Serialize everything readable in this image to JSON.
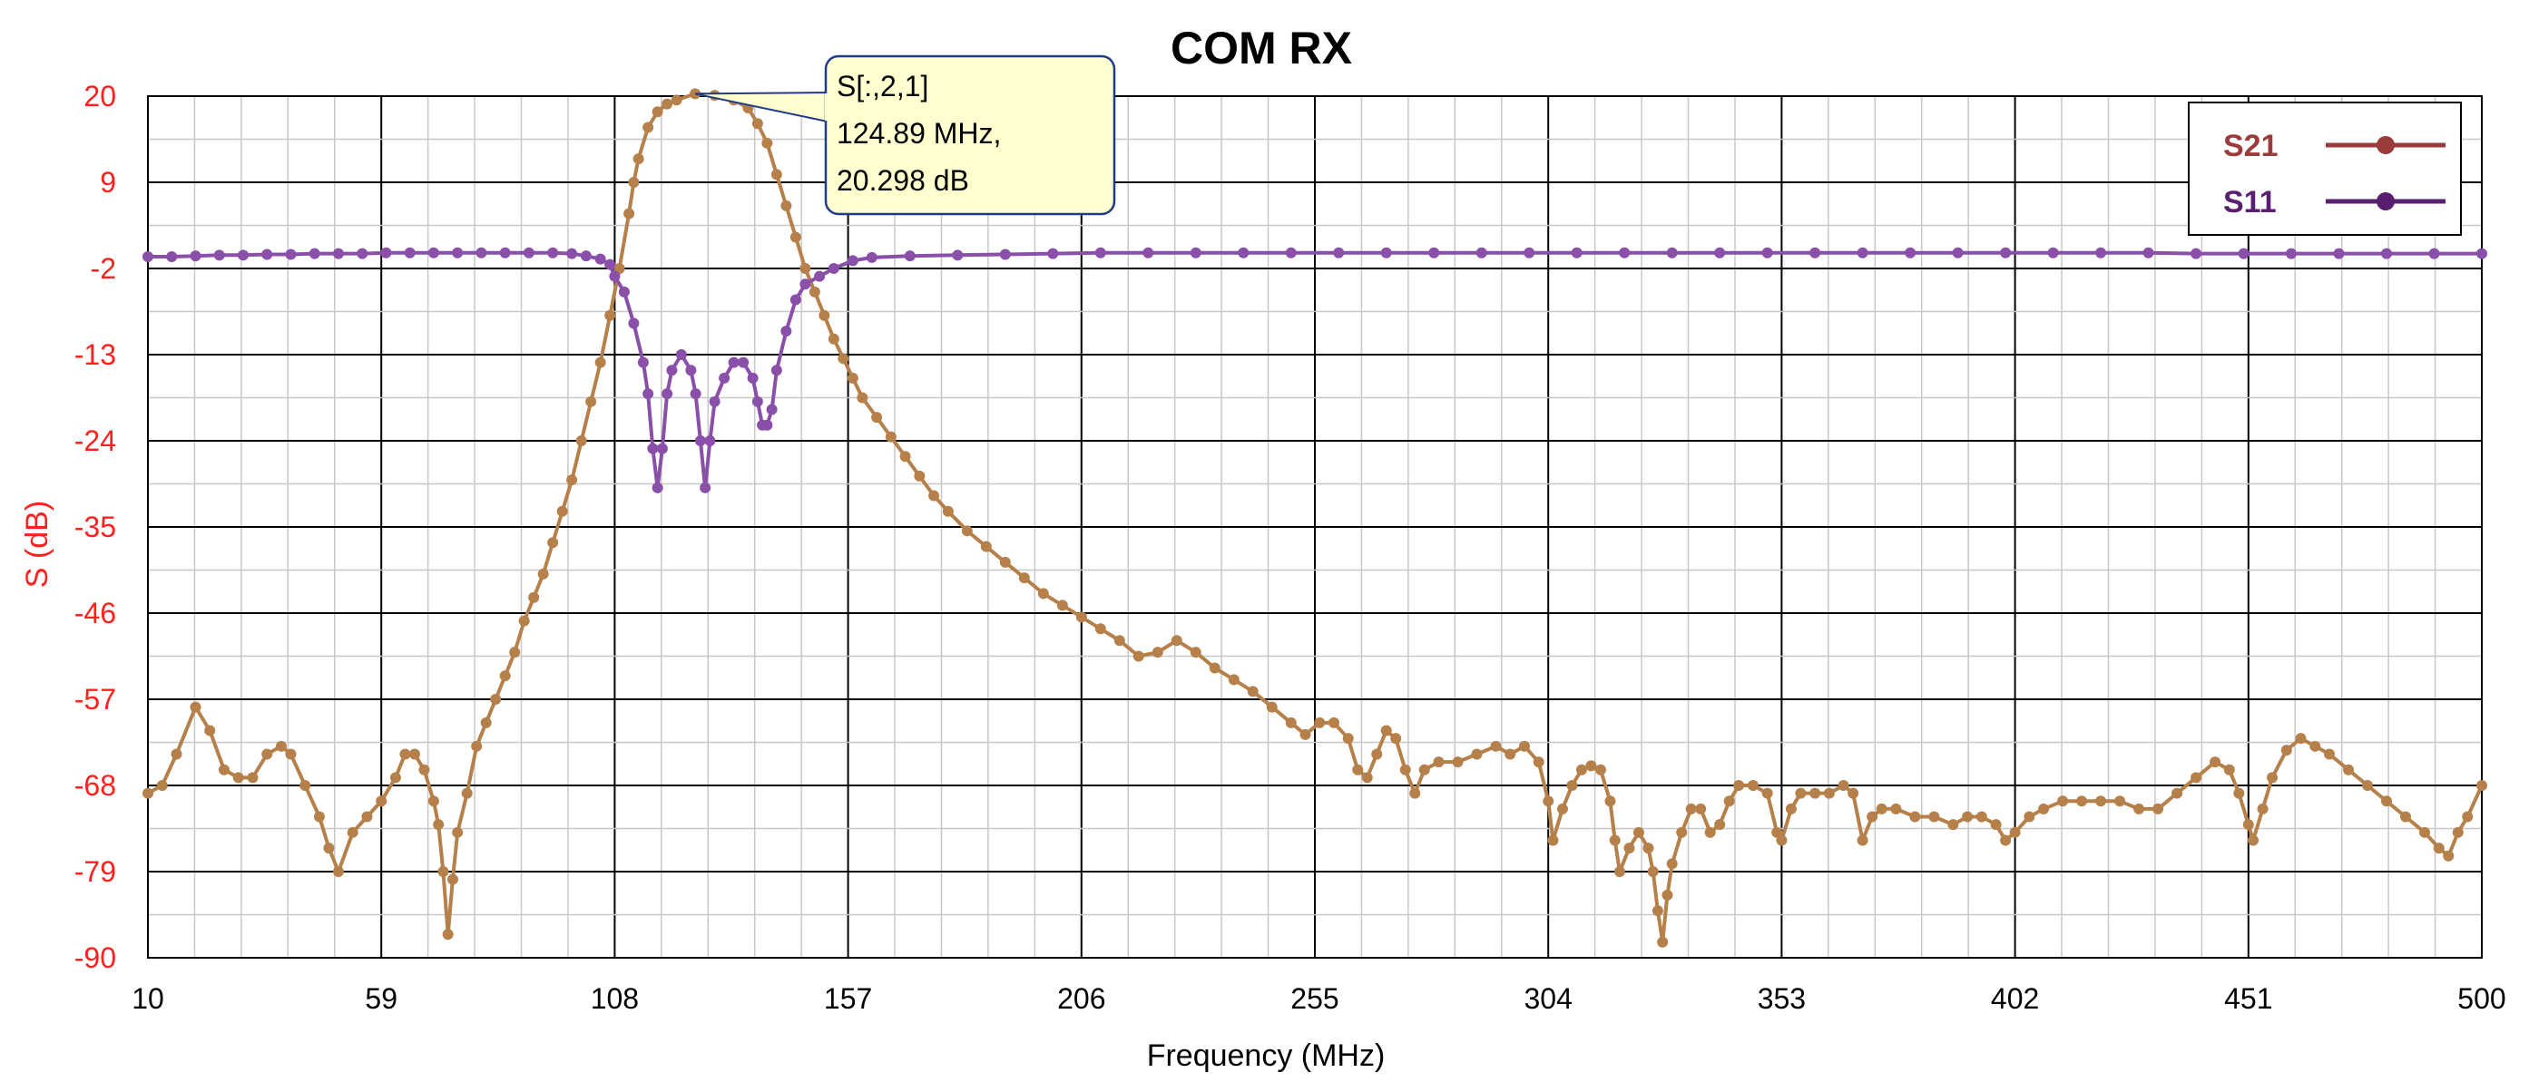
{
  "chart_data": {
    "type": "line",
    "title": "COM RX",
    "xlabel": "Frequency (MHz)",
    "ylabel": "S (dB)",
    "xlim": [
      10,
      500
    ],
    "ylim": [
      -90,
      20
    ],
    "x_ticks": [
      "10",
      "59",
      "108",
      "157",
      "206",
      "255",
      "304",
      "353",
      "402",
      "451",
      "500"
    ],
    "y_ticks": [
      "20",
      "9",
      "-2",
      "-13",
      "-24",
      "-35",
      "-46",
      "-57",
      "-68",
      "-79",
      "-90"
    ],
    "grid": true,
    "legend_position": "top-right",
    "series": [
      {
        "name": "S21",
        "color": "#b5804a",
        "legend_color": "#9b3c3c",
        "points": [
          [
            10,
            -69
          ],
          [
            13,
            -68
          ],
          [
            16,
            -64
          ],
          [
            20,
            -58
          ],
          [
            23,
            -61
          ],
          [
            26,
            -66
          ],
          [
            29,
            -67
          ],
          [
            32,
            -67
          ],
          [
            35,
            -64
          ],
          [
            38,
            -63
          ],
          [
            40,
            -64
          ],
          [
            43,
            -68
          ],
          [
            46,
            -72
          ],
          [
            48,
            -76
          ],
          [
            50,
            -79
          ],
          [
            53,
            -74
          ],
          [
            56,
            -72
          ],
          [
            59,
            -70
          ],
          [
            62,
            -67
          ],
          [
            64,
            -64
          ],
          [
            66,
            -64
          ],
          [
            68,
            -66
          ],
          [
            70,
            -70
          ],
          [
            71,
            -73
          ],
          [
            72,
            -79
          ],
          [
            73,
            -87
          ],
          [
            74,
            -80
          ],
          [
            75,
            -74
          ],
          [
            77,
            -69
          ],
          [
            79,
            -63
          ],
          [
            81,
            -60
          ],
          [
            83,
            -57
          ],
          [
            85,
            -54
          ],
          [
            87,
            -51
          ],
          [
            89,
            -47
          ],
          [
            91,
            -44
          ],
          [
            93,
            -41
          ],
          [
            95,
            -37
          ],
          [
            97,
            -33
          ],
          [
            99,
            -29
          ],
          [
            101,
            -24
          ],
          [
            103,
            -19
          ],
          [
            105,
            -14
          ],
          [
            107,
            -8
          ],
          [
            109,
            -2
          ],
          [
            111,
            5
          ],
          [
            112,
            9
          ],
          [
            113,
            12
          ],
          [
            115,
            16
          ],
          [
            117,
            18
          ],
          [
            119,
            19
          ],
          [
            121,
            19.5
          ],
          [
            124.89,
            20.298
          ],
          [
            129,
            20.1
          ],
          [
            133,
            19.5
          ],
          [
            136,
            18.5
          ],
          [
            138,
            16.5
          ],
          [
            140,
            14
          ],
          [
            142,
            10
          ],
          [
            144,
            6
          ],
          [
            146,
            2
          ],
          [
            148,
            -2
          ],
          [
            150,
            -5
          ],
          [
            152,
            -8
          ],
          [
            154,
            -11
          ],
          [
            156,
            -13.5
          ],
          [
            158,
            -16
          ],
          [
            160,
            -18.5
          ],
          [
            163,
            -21
          ],
          [
            166,
            -23.5
          ],
          [
            169,
            -26
          ],
          [
            172,
            -28.5
          ],
          [
            175,
            -31
          ],
          [
            178,
            -33
          ],
          [
            182,
            -35.5
          ],
          [
            186,
            -37.5
          ],
          [
            190,
            -39.5
          ],
          [
            194,
            -41.5
          ],
          [
            198,
            -43.5
          ],
          [
            202,
            -45
          ],
          [
            206,
            -46.5
          ],
          [
            210,
            -48
          ],
          [
            214,
            -49.5
          ],
          [
            218,
            -51.5
          ],
          [
            222,
            -51
          ],
          [
            226,
            -49.5
          ],
          [
            230,
            -51
          ],
          [
            234,
            -53
          ],
          [
            238,
            -54.5
          ],
          [
            242,
            -56
          ],
          [
            246,
            -58
          ],
          [
            250,
            -60
          ],
          [
            253,
            -61.5
          ],
          [
            256,
            -60
          ],
          [
            259,
            -60
          ],
          [
            262,
            -62
          ],
          [
            264,
            -66
          ],
          [
            266,
            -67
          ],
          [
            268,
            -64
          ],
          [
            270,
            -61
          ],
          [
            272,
            -62
          ],
          [
            274,
            -66
          ],
          [
            276,
            -69
          ],
          [
            278,
            -66
          ],
          [
            281,
            -65
          ],
          [
            285,
            -65
          ],
          [
            289,
            -64
          ],
          [
            293,
            -63
          ],
          [
            296,
            -64
          ],
          [
            299,
            -63
          ],
          [
            302,
            -65
          ],
          [
            304,
            -70
          ],
          [
            305,
            -75
          ],
          [
            307,
            -71
          ],
          [
            309,
            -68
          ],
          [
            311,
            -66
          ],
          [
            313,
            -65.5
          ],
          [
            315,
            -66
          ],
          [
            317,
            -70
          ],
          [
            318,
            -75
          ],
          [
            319,
            -79
          ],
          [
            321,
            -76
          ],
          [
            323,
            -74
          ],
          [
            325,
            -76
          ],
          [
            326,
            -79
          ],
          [
            327,
            -84
          ],
          [
            328,
            -88
          ],
          [
            329,
            -82
          ],
          [
            330,
            -78
          ],
          [
            332,
            -74
          ],
          [
            334,
            -71
          ],
          [
            336,
            -71
          ],
          [
            338,
            -74
          ],
          [
            340,
            -73
          ],
          [
            342,
            -70
          ],
          [
            344,
            -68
          ],
          [
            347,
            -68
          ],
          [
            350,
            -69
          ],
          [
            352,
            -74
          ],
          [
            353,
            -75
          ],
          [
            355,
            -71
          ],
          [
            357,
            -69
          ],
          [
            360,
            -69
          ],
          [
            363,
            -69
          ],
          [
            366,
            -68
          ],
          [
            368,
            -69
          ],
          [
            370,
            -75
          ],
          [
            372,
            -72
          ],
          [
            374,
            -71
          ],
          [
            377,
            -71
          ],
          [
            381,
            -72
          ],
          [
            385,
            -72
          ],
          [
            389,
            -73
          ],
          [
            392,
            -72
          ],
          [
            395,
            -72
          ],
          [
            398,
            -73
          ],
          [
            400,
            -75
          ],
          [
            402,
            -74
          ],
          [
            405,
            -72
          ],
          [
            408,
            -71
          ],
          [
            412,
            -70
          ],
          [
            416,
            -70
          ],
          [
            420,
            -70
          ],
          [
            424,
            -70
          ],
          [
            428,
            -71
          ],
          [
            432,
            -71
          ],
          [
            436,
            -69
          ],
          [
            440,
            -67
          ],
          [
            444,
            -65
          ],
          [
            447,
            -66
          ],
          [
            449,
            -69
          ],
          [
            451,
            -73
          ],
          [
            452,
            -75
          ],
          [
            454,
            -71
          ],
          [
            456,
            -67
          ],
          [
            459,
            -63.5
          ],
          [
            462,
            -62
          ],
          [
            465,
            -63
          ],
          [
            468,
            -64
          ],
          [
            472,
            -66
          ],
          [
            476,
            -68
          ],
          [
            480,
            -70
          ],
          [
            484,
            -72
          ],
          [
            488,
            -74
          ],
          [
            491,
            -76
          ],
          [
            493,
            -77
          ],
          [
            495,
            -74
          ],
          [
            497,
            -72
          ],
          [
            500,
            -68
          ]
        ]
      },
      {
        "name": "S11",
        "color": "#8a4fa8",
        "legend_color": "#5a1e70",
        "points": [
          [
            10,
            -0.5
          ],
          [
            15,
            -0.5
          ],
          [
            20,
            -0.4
          ],
          [
            25,
            -0.3
          ],
          [
            30,
            -0.3
          ],
          [
            35,
            -0.2
          ],
          [
            40,
            -0.2
          ],
          [
            45,
            -0.1
          ],
          [
            50,
            -0.1
          ],
          [
            55,
            -0.1
          ],
          [
            60,
            0
          ],
          [
            65,
            0
          ],
          [
            70,
            0
          ],
          [
            75,
            0
          ],
          [
            80,
            0
          ],
          [
            85,
            0
          ],
          [
            90,
            0
          ],
          [
            95,
            0
          ],
          [
            99,
            -0.1
          ],
          [
            102,
            -0.4
          ],
          [
            105,
            -0.8
          ],
          [
            107,
            -1.5
          ],
          [
            108,
            -3
          ],
          [
            110,
            -5
          ],
          [
            112,
            -9
          ],
          [
            114,
            -14
          ],
          [
            115,
            -18
          ],
          [
            116,
            -25
          ],
          [
            117,
            -30
          ],
          [
            118,
            -25
          ],
          [
            119,
            -18
          ],
          [
            120,
            -15
          ],
          [
            122,
            -13
          ],
          [
            124,
            -15
          ],
          [
            125,
            -18
          ],
          [
            126,
            -24
          ],
          [
            127,
            -30
          ],
          [
            128,
            -24
          ],
          [
            129,
            -19
          ],
          [
            131,
            -16
          ],
          [
            133,
            -14
          ],
          [
            135,
            -14
          ],
          [
            137,
            -16
          ],
          [
            138,
            -19
          ],
          [
            139,
            -22
          ],
          [
            140,
            -22
          ],
          [
            141,
            -20
          ],
          [
            142,
            -15
          ],
          [
            144,
            -10
          ],
          [
            146,
            -6
          ],
          [
            148,
            -4
          ],
          [
            151,
            -3
          ],
          [
            154,
            -2
          ],
          [
            158,
            -1
          ],
          [
            162,
            -0.6
          ],
          [
            170,
            -0.4
          ],
          [
            180,
            -0.3
          ],
          [
            190,
            -0.2
          ],
          [
            200,
            -0.1
          ],
          [
            210,
            0
          ],
          [
            220,
            0
          ],
          [
            230,
            0
          ],
          [
            240,
            0
          ],
          [
            250,
            0
          ],
          [
            260,
            0
          ],
          [
            270,
            0
          ],
          [
            280,
            0
          ],
          [
            290,
            0
          ],
          [
            300,
            0
          ],
          [
            310,
            0
          ],
          [
            320,
            0
          ],
          [
            330,
            0
          ],
          [
            340,
            0
          ],
          [
            350,
            0
          ],
          [
            360,
            0
          ],
          [
            370,
            0
          ],
          [
            380,
            0
          ],
          [
            390,
            0
          ],
          [
            400,
            0
          ],
          [
            410,
            0
          ],
          [
            420,
            0
          ],
          [
            430,
            0
          ],
          [
            440,
            -0.1
          ],
          [
            450,
            -0.1
          ],
          [
            460,
            -0.1
          ],
          [
            470,
            -0.1
          ],
          [
            480,
            -0.1
          ],
          [
            490,
            -0.1
          ],
          [
            500,
            -0.1
          ]
        ]
      }
    ],
    "annotation": {
      "series": "S21",
      "x": 124.89,
      "y": 20.298,
      "lines": [
        "S[:,2,1]",
        "124.89 MHz,",
        "20.298 dB"
      ]
    }
  }
}
